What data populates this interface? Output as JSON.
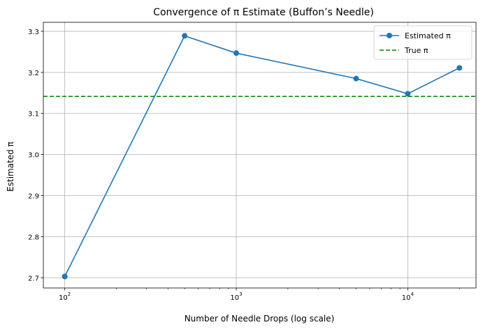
{
  "chart_data": {
    "type": "line",
    "title": "Convergence of π Estimate (Buffon’s Needle)",
    "xlabel": "Number of Needle Drops (log scale)",
    "ylabel": "Estimated π",
    "xscale": "log",
    "xlim": [
      75,
      25000
    ],
    "ylim": [
      2.675,
      3.322
    ],
    "grid": true,
    "legend_position": "top-right",
    "x_ticks": [
      {
        "value": 100,
        "base": "10",
        "exp": "2"
      },
      {
        "value": 1000,
        "base": "10",
        "exp": "3"
      },
      {
        "value": 10000,
        "base": "10",
        "exp": "4"
      }
    ],
    "x_minor_ticks": [
      200,
      300,
      400,
      500,
      600,
      700,
      800,
      900,
      2000,
      3000,
      4000,
      5000,
      6000,
      7000,
      8000,
      9000,
      20000
    ],
    "y_ticks": [
      {
        "value": 2.7,
        "label": "2.7"
      },
      {
        "value": 2.8,
        "label": "2.8"
      },
      {
        "value": 2.9,
        "label": "2.9"
      },
      {
        "value": 3.0,
        "label": "3.0"
      },
      {
        "value": 3.1,
        "label": "3.1"
      },
      {
        "value": 3.2,
        "label": "3.2"
      },
      {
        "value": 3.3,
        "label": "3.3"
      }
    ],
    "series": [
      {
        "name": "Estimated π",
        "color": "#1f77b4",
        "style": "solid",
        "marker": "circle",
        "x": [
          100,
          500,
          1000,
          5000,
          10000,
          20000
        ],
        "y": [
          2.703,
          3.289,
          3.247,
          3.185,
          3.148,
          3.211
        ]
      }
    ],
    "reference_line": {
      "name": "True π",
      "color": "#008000",
      "style": "dashed",
      "y": 3.14159
    }
  }
}
